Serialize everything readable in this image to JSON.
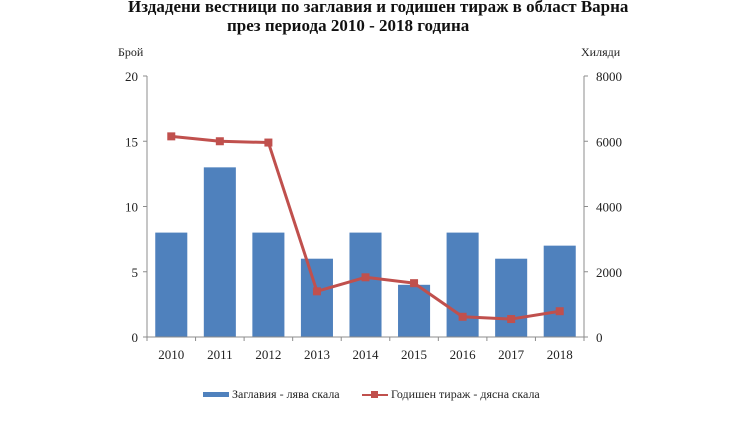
{
  "title": {
    "line1": "Издадени вестници по заглавия и годишен тираж в област Варна",
    "line2": "през периода 2010 - 2018 година"
  },
  "axes": {
    "left_title": "Брой",
    "right_title": "Хиляди",
    "left_ticks": [
      "0",
      "5",
      "10",
      "15",
      "20"
    ],
    "right_ticks": [
      "0",
      "2000",
      "4000",
      "6000",
      "8000"
    ]
  },
  "legend": {
    "bar_label": "Заглавия  - лява скала",
    "line_label": "Годишен  тираж  - дясна скала"
  },
  "colors": {
    "bar": "#4F81BD",
    "line": "#C0504D",
    "axis": "#8c8c8c"
  },
  "chart_data": {
    "type": "bar+line",
    "title": "Издадени вестници по заглавия и годишен тираж в област Варна през периода 2010 - 2018 година",
    "categories": [
      "2010",
      "2011",
      "2012",
      "2013",
      "2014",
      "2015",
      "2016",
      "2017",
      "2018"
    ],
    "series": [
      {
        "name": "Заглавия - лява скала",
        "type": "bar",
        "axis": "left",
        "values": [
          8,
          13,
          8,
          6,
          8,
          4,
          8,
          6,
          7
        ]
      },
      {
        "name": "Годишен тираж - дясна скала",
        "type": "line",
        "axis": "right",
        "marker": "square",
        "values": [
          6150,
          6000,
          5960,
          1400,
          1830,
          1650,
          620,
          550,
          790
        ]
      }
    ],
    "ylabel_left": "Брой",
    "ylabel_right": "Хиляди",
    "ylim_left": [
      0,
      20
    ],
    "ylim_right": [
      0,
      8000
    ],
    "yticks_left": [
      0,
      5,
      10,
      15,
      20
    ],
    "yticks_right": [
      0,
      2000,
      4000,
      6000,
      8000
    ],
    "grid": false,
    "legend_position": "bottom"
  }
}
